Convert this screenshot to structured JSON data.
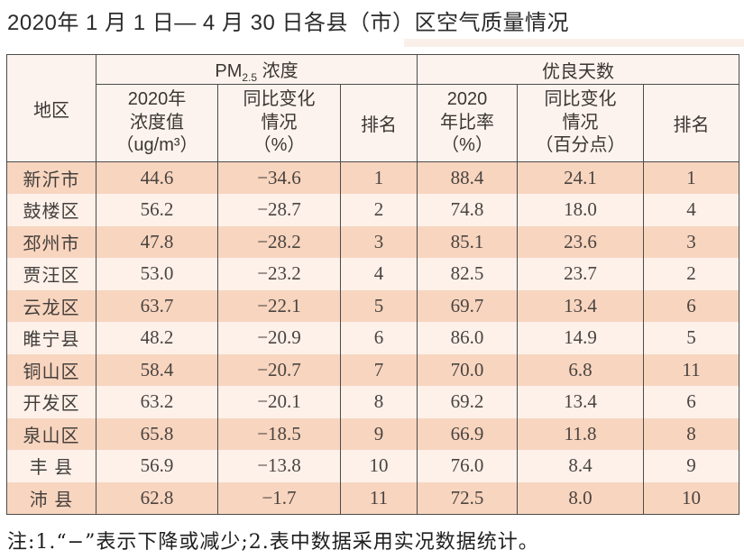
{
  "page": {
    "title": "2020年 1 月 1 日— 4 月 30 日各县（市）区空气质量情况",
    "footnote": "注:1.“−”表示下降或减少;2.表中数据采用实况数据统计。"
  },
  "colors": {
    "row_dark": "#f8d5bf",
    "row_light": "#fdf1ea",
    "header_bg": "#fdf3ee",
    "border": "#4b4b4b"
  },
  "table": {
    "header": {
      "region": "地区",
      "pm_group": {
        "prefix": "PM",
        "sub": "2.5",
        "suffix": " 浓度"
      },
      "good_group": "优良天数",
      "pm_value": "2020年\n浓度值\n（ug/m³）",
      "pm_change": "同比变化\n情况\n（%）",
      "pm_rank": "排名",
      "good_rate": "2020\n年比率\n（%）",
      "good_change": "同比变化\n情况\n（百分点）",
      "good_rank": "排名"
    },
    "rows": [
      {
        "region": "新沂市",
        "pm_value": "44.6",
        "pm_change": "−34.6",
        "pm_rank": "1",
        "good_rate": "88.4",
        "good_change": "24.1",
        "good_rank": "1"
      },
      {
        "region": "鼓楼区",
        "pm_value": "56.2",
        "pm_change": "−28.7",
        "pm_rank": "2",
        "good_rate": "74.8",
        "good_change": "18.0",
        "good_rank": "4"
      },
      {
        "region": "邳州市",
        "pm_value": "47.8",
        "pm_change": "−28.2",
        "pm_rank": "3",
        "good_rate": "85.1",
        "good_change": "23.6",
        "good_rank": "3"
      },
      {
        "region": "贾汪区",
        "pm_value": "53.0",
        "pm_change": "−23.2",
        "pm_rank": "4",
        "good_rate": "82.5",
        "good_change": "23.7",
        "good_rank": "2"
      },
      {
        "region": "云龙区",
        "pm_value": "63.7",
        "pm_change": "−22.1",
        "pm_rank": "5",
        "good_rate": "69.7",
        "good_change": "13.4",
        "good_rank": "6"
      },
      {
        "region": "睢宁县",
        "pm_value": "48.2",
        "pm_change": "−20.9",
        "pm_rank": "6",
        "good_rate": "86.0",
        "good_change": "14.9",
        "good_rank": "5"
      },
      {
        "region": "铜山区",
        "pm_value": "58.4",
        "pm_change": "−20.7",
        "pm_rank": "7",
        "good_rate": "70.0",
        "good_change": "6.8",
        "good_rank": "11"
      },
      {
        "region": "开发区",
        "pm_value": "63.2",
        "pm_change": "−20.1",
        "pm_rank": "8",
        "good_rate": "69.2",
        "good_change": "13.4",
        "good_rank": "6"
      },
      {
        "region": "泉山区",
        "pm_value": "65.8",
        "pm_change": "−18.5",
        "pm_rank": "9",
        "good_rate": "66.9",
        "good_change": "11.8",
        "good_rank": "8"
      },
      {
        "region": "丰 县",
        "pm_value": "56.9",
        "pm_change": "−13.8",
        "pm_rank": "10",
        "good_rate": "76.0",
        "good_change": "8.4",
        "good_rank": "9"
      },
      {
        "region": "沛 县",
        "pm_value": "62.8",
        "pm_change": "−1.7",
        "pm_rank": "11",
        "good_rate": "72.5",
        "good_change": "8.0",
        "good_rank": "10"
      }
    ]
  }
}
